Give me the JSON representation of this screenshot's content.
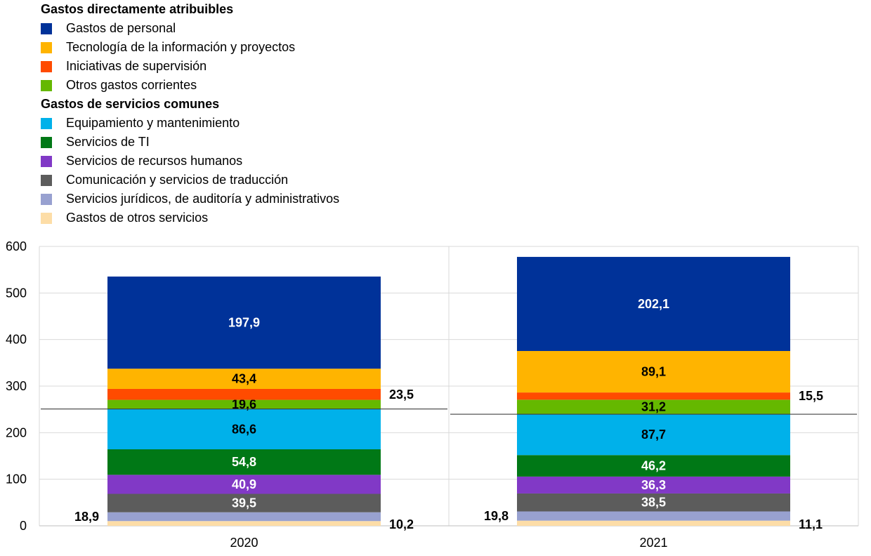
{
  "legend": {
    "group_direct": "Gastos directamente atribuibles",
    "direct_items": [
      {
        "label": "Gastos de personal",
        "color": "#003299"
      },
      {
        "label": "Tecnología de la información y proyectos",
        "color": "#FFB400"
      },
      {
        "label": "Iniciativas de supervisión",
        "color": "#FF4B00"
      },
      {
        "label": "Otros gastos corrientes",
        "color": "#65B800"
      }
    ],
    "group_common": "Gastos de servicios comunes",
    "common_items": [
      {
        "label": "Equipamiento y mantenimiento",
        "color": "#00B1EA"
      },
      {
        "label": "Servicios de TI",
        "color": "#007816"
      },
      {
        "label": "Servicios de recursos humanos",
        "color": "#8139C6"
      },
      {
        "label": "Comunicación y servicios de traducción",
        "color": "#5C5C5C"
      },
      {
        "label": "Servicios jurídicos, de auditoría y administrativos",
        "color": "#98A1D0"
      },
      {
        "label": "Gastos de otros servicios",
        "color": "#FDDDA7"
      }
    ]
  },
  "chart_data": {
    "type": "bar",
    "stacked": true,
    "categories": [
      "2020",
      "2021"
    ],
    "ylim": [
      0,
      600
    ],
    "yticks": [
      "0",
      "100",
      "200",
      "300",
      "400",
      "500",
      "600"
    ],
    "grid": true,
    "series": [
      {
        "name": "Gastos de otros servicios",
        "values": [
          10.2,
          11.1
        ],
        "labels": [
          "10,2",
          "11,1"
        ],
        "color": "#FDDDA7",
        "label_pos": "right",
        "text_color": "#000000"
      },
      {
        "name": "Servicios jurídicos, de auditoría y administrativos",
        "values": [
          18.9,
          19.8
        ],
        "labels": [
          "18,9",
          "19,8"
        ],
        "color": "#98A1D0",
        "label_pos": "left",
        "text_color": "#000000"
      },
      {
        "name": "Comunicación y servicios de traducción",
        "values": [
          39.5,
          38.5
        ],
        "labels": [
          "39,5",
          "38,5"
        ],
        "color": "#5C5C5C",
        "label_pos": "inside",
        "text_color": "#FFFFFF"
      },
      {
        "name": "Servicios de recursos humanos",
        "values": [
          40.9,
          36.3
        ],
        "labels": [
          "40,9",
          "36,3"
        ],
        "color": "#8139C6",
        "label_pos": "inside",
        "text_color": "#FFFFFF"
      },
      {
        "name": "Servicios de TI",
        "values": [
          54.8,
          46.2
        ],
        "labels": [
          "54,8",
          "46,2"
        ],
        "color": "#007816",
        "label_pos": "inside",
        "text_color": "#FFFFFF"
      },
      {
        "name": "Equipamiento y mantenimiento",
        "values": [
          86.6,
          87.7
        ],
        "labels": [
          "86,6",
          "87,7"
        ],
        "color": "#00B1EA",
        "label_pos": "inside",
        "text_color": "#000000"
      },
      {
        "name": "Otros gastos corrientes",
        "values": [
          19.6,
          31.2
        ],
        "labels": [
          "19,6",
          "31,2"
        ],
        "color": "#65B800",
        "label_pos": "inside",
        "text_color": "#000000"
      },
      {
        "name": "Iniciativas de supervisión",
        "values": [
          23.5,
          15.5
        ],
        "labels": [
          "23,5",
          "15,5"
        ],
        "color": "#FF4B00",
        "label_pos": "right",
        "text_color": "#000000"
      },
      {
        "name": "Tecnología de la información y proyectos",
        "values": [
          43.4,
          89.1
        ],
        "labels": [
          "43,4",
          "89,1"
        ],
        "color": "#FFB400",
        "label_pos": "inside",
        "text_color": "#000000"
      },
      {
        "name": "Gastos de personal",
        "values": [
          197.9,
          202.1
        ],
        "labels": [
          "197,9",
          "202,1"
        ],
        "color": "#003299",
        "label_pos": "inside",
        "text_color": "#FFFFFF"
      }
    ],
    "divider_after_series": 5
  }
}
